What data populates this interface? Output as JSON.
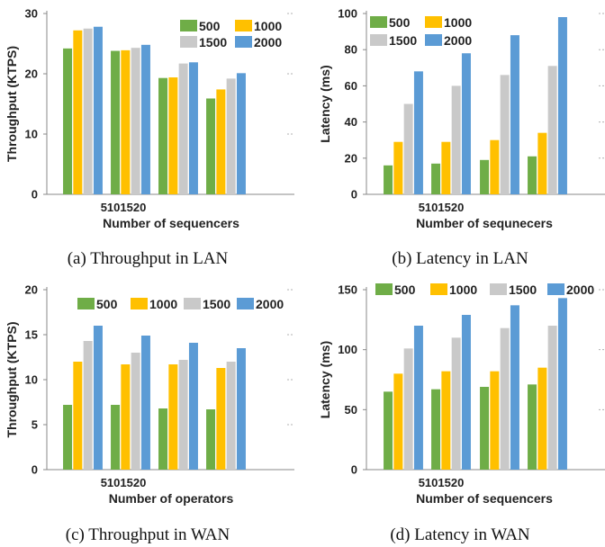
{
  "colors": {
    "500": "#6fad47",
    "1000": "#ffc000",
    "1500": "#c9c9c9",
    "2000": "#5b9bd5",
    "axis": "#888888",
    "grid": "#b0b0b0"
  },
  "chart_data": [
    {
      "type": "bar",
      "caption": "(a) Throughput in LAN",
      "ylabel": "Throughput (KTPS)",
      "xlabel": "Number of sequencers",
      "categories": [
        "5",
        "10",
        "15",
        "20"
      ],
      "ylim": [
        0,
        30
      ],
      "yticks": [
        0,
        10,
        20,
        30
      ],
      "legend_position": "top-right",
      "series": [
        {
          "name": "500",
          "values": [
            24.2,
            23.8,
            19.3,
            15.9
          ]
        },
        {
          "name": "1000",
          "values": [
            27.2,
            23.9,
            19.4,
            17.4
          ]
        },
        {
          "name": "1500",
          "values": [
            27.5,
            24.3,
            21.7,
            19.2
          ]
        },
        {
          "name": "2000",
          "values": [
            27.8,
            24.8,
            21.9,
            20.1
          ]
        }
      ]
    },
    {
      "type": "bar",
      "caption": "(b) Latency in LAN",
      "ylabel": "Latency (ms)",
      "xlabel": "Number of sequnecers",
      "categories": [
        "5",
        "10",
        "15",
        "20"
      ],
      "ylim": [
        0,
        100
      ],
      "yticks": [
        0,
        20,
        40,
        60,
        80,
        100
      ],
      "legend_position": "top-left",
      "series": [
        {
          "name": "500",
          "values": [
            16,
            17,
            19,
            21
          ]
        },
        {
          "name": "1000",
          "values": [
            29,
            29,
            30,
            34
          ]
        },
        {
          "name": "1500",
          "values": [
            50,
            60,
            66,
            71
          ]
        },
        {
          "name": "2000",
          "values": [
            68,
            78,
            88,
            98
          ]
        }
      ]
    },
    {
      "type": "bar",
      "caption": "(c) Throughput in WAN",
      "ylabel": "Throughput (KTPS)",
      "xlabel": "Number of operators",
      "categories": [
        "5",
        "10",
        "15",
        "20"
      ],
      "ylim": [
        0,
        20
      ],
      "yticks": [
        0,
        5,
        10,
        15,
        20
      ],
      "legend_position": "top",
      "series": [
        {
          "name": "500",
          "values": [
            7.2,
            7.2,
            6.8,
            6.7
          ]
        },
        {
          "name": "1000",
          "values": [
            12.0,
            11.7,
            11.7,
            11.3
          ]
        },
        {
          "name": "1500",
          "values": [
            14.3,
            13.0,
            12.2,
            12.0
          ]
        },
        {
          "name": "2000",
          "values": [
            16.0,
            14.9,
            14.1,
            13.5
          ]
        }
      ]
    },
    {
      "type": "bar",
      "caption": "(d) Latency in WAN",
      "ylabel": "Latency (ms)",
      "xlabel": "Number of sequencers",
      "categories": [
        "5",
        "10",
        "15",
        "20"
      ],
      "ylim": [
        0,
        150
      ],
      "yticks": [
        0,
        50,
        100,
        150
      ],
      "legend_position": "top",
      "series": [
        {
          "name": "500",
          "values": [
            65,
            67,
            69,
            71
          ]
        },
        {
          "name": "1000",
          "values": [
            80,
            82,
            82,
            85
          ]
        },
        {
          "name": "1500",
          "values": [
            101,
            110,
            118,
            120
          ]
        },
        {
          "name": "2000",
          "values": [
            120,
            129,
            137,
            143
          ]
        }
      ]
    }
  ]
}
